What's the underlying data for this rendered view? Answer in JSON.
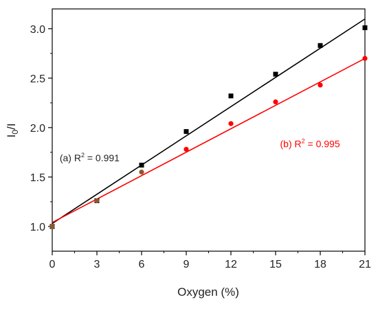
{
  "chart_data": {
    "type": "scatter",
    "title": "",
    "xlabel": "Oxygen (%)",
    "ylabel": "I0/I",
    "ylabel_main": "I",
    "ylabel_sub": "0",
    "ylabel_tail": "/I",
    "xlim": [
      0,
      21
    ],
    "ylim": [
      0.75,
      3.2
    ],
    "xticks": [
      0,
      3,
      6,
      9,
      12,
      15,
      18,
      21
    ],
    "yticks": [
      1.0,
      1.5,
      2.0,
      2.5,
      3.0
    ],
    "ytick_labels": [
      "1.0",
      "1.5",
      "2.0",
      "2.5",
      "3.0"
    ],
    "grid": false,
    "series": [
      {
        "key": "a",
        "color": "#000000",
        "marker": "square",
        "x": [
          0,
          3,
          6,
          9,
          12,
          15,
          18,
          21
        ],
        "y": [
          1.0,
          1.26,
          1.62,
          1.96,
          2.32,
          2.54,
          2.83,
          3.01
        ],
        "fit": {
          "intercept": 1.03,
          "slope": 0.0985
        },
        "annotation": {
          "prefix": "(a) R",
          "sup": "2",
          "suffix": " = 0.991",
          "color": "#222222",
          "at": [
            0.5,
            1.66
          ]
        }
      },
      {
        "key": "b",
        "color": "#ff0000",
        "marker": "circle",
        "x": [
          9,
          12,
          15,
          18,
          21
        ],
        "y": [
          1.78,
          2.04,
          2.26,
          2.43,
          2.7
        ],
        "fit": {
          "intercept": 1.04,
          "slope": 0.079
        },
        "annotation": {
          "prefix": "(b) R",
          "sup": "2",
          "suffix": " = 0.995",
          "color": "#ff0000",
          "at": [
            15.3,
            1.8
          ]
        }
      },
      {
        "key": "overlap",
        "color": "#8b5a2b",
        "marker": "circle",
        "x": [
          0,
          3,
          6
        ],
        "y": [
          1.0,
          1.26,
          1.55
        ]
      }
    ]
  }
}
